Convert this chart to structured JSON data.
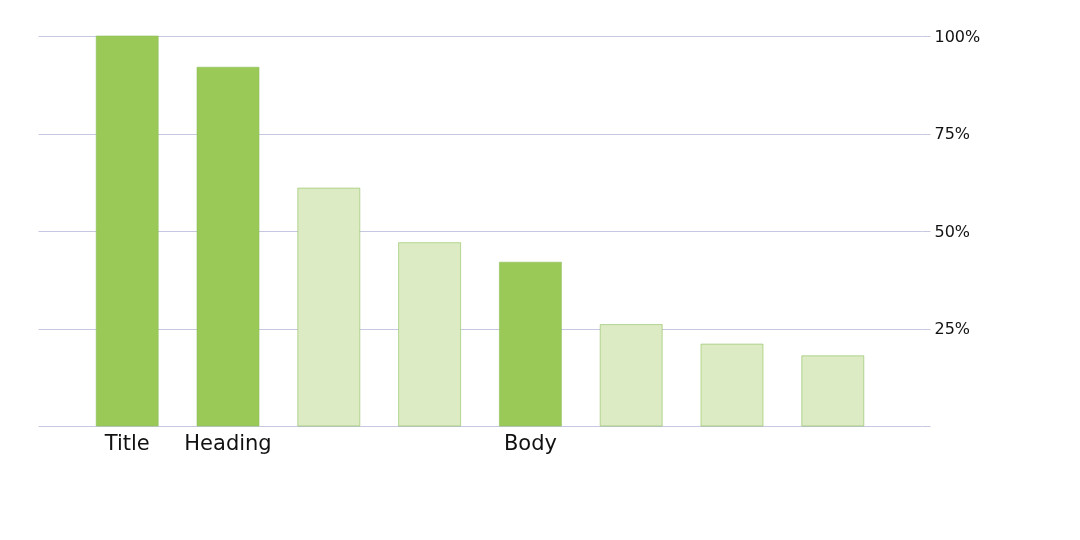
{
  "chart_data": {
    "type": "bar",
    "categories": [
      "Title",
      "Heading",
      null,
      null,
      "Body",
      null,
      null,
      null
    ],
    "values": [
      100,
      92,
      61,
      47,
      42,
      26,
      21,
      18
    ],
    "colors": [
      "#9bc957",
      "#9bc957",
      "#ddebc5",
      "#ddebc5",
      "#9bc957",
      "#ddebc5",
      "#ddebc5",
      "#ddebc5"
    ],
    "ylim": [
      0,
      100
    ],
    "yticks": [
      {
        "value": 0,
        "label": null
      },
      {
        "value": 25,
        "label": "25%"
      },
      {
        "value": 50,
        "label": "50%"
      },
      {
        "value": 75,
        "label": "75%"
      },
      {
        "value": 100,
        "label": "100%"
      }
    ],
    "grid": "y"
  }
}
